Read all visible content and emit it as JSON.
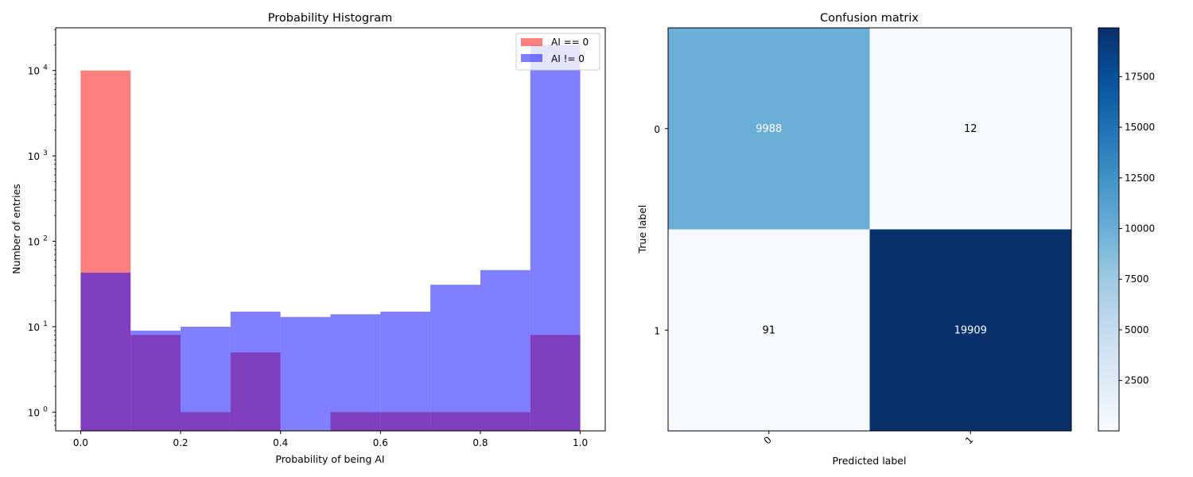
{
  "chart_data": [
    {
      "type": "bar",
      "subtype": "overlaid-histogram",
      "title": "Probability Histogram",
      "xlabel": "Probability of being AI",
      "ylabel": "Number of entries",
      "xlim": [
        -0.05,
        1.05
      ],
      "ylim_log10": [
        -0.22,
        4.5
      ],
      "yscale": "log",
      "bin_edges": [
        0.0,
        0.1,
        0.2,
        0.3,
        0.4,
        0.5,
        0.6,
        0.7,
        0.8,
        0.9,
        1.0
      ],
      "x_ticks": [
        {
          "value": 0.0,
          "label": "0.0"
        },
        {
          "value": 0.2,
          "label": "0.2"
        },
        {
          "value": 0.4,
          "label": "0.4"
        },
        {
          "value": 0.6,
          "label": "0.6"
        },
        {
          "value": 0.8,
          "label": "0.8"
        },
        {
          "value": 1.0,
          "label": "1.0"
        }
      ],
      "y_ticks": [
        {
          "exp": 0,
          "base": "10",
          "sup": "0"
        },
        {
          "exp": 1,
          "base": "10",
          "sup": "1"
        },
        {
          "exp": 2,
          "base": "10",
          "sup": "2"
        },
        {
          "exp": 3,
          "base": "10",
          "sup": "3"
        },
        {
          "exp": 4,
          "base": "10",
          "sup": "4"
        }
      ],
      "series": [
        {
          "name": "AI == 0",
          "color": "#ff0000",
          "alpha": 0.5,
          "values": [
            10000,
            8,
            1,
            5,
            0,
            1,
            1,
            1,
            1,
            8
          ]
        },
        {
          "name": "AI != 0",
          "color": "#0000ff",
          "alpha": 0.5,
          "values": [
            43,
            9,
            10,
            15,
            13,
            14,
            15,
            31,
            46,
            20000
          ]
        }
      ],
      "legend_position": "top-right"
    },
    {
      "type": "heatmap",
      "title": "Confusion matrix",
      "xlabel": "Predicted label",
      "ylabel": "True label",
      "x_categories": [
        "0",
        "1"
      ],
      "y_categories": [
        "0",
        "1"
      ],
      "matrix": [
        [
          9988,
          12
        ],
        [
          91,
          19909
        ]
      ],
      "cell_labels": [
        [
          "9988",
          "12"
        ],
        [
          "91",
          "19909"
        ]
      ],
      "colormap": "Blues",
      "colorbar": {
        "range": [
          12,
          19909
        ],
        "ticks": [
          {
            "value": 2500,
            "label": "2500"
          },
          {
            "value": 5000,
            "label": "5000"
          },
          {
            "value": 7500,
            "label": "7500"
          },
          {
            "value": 10000,
            "label": "10000"
          },
          {
            "value": 12500,
            "label": "12500"
          },
          {
            "value": 15000,
            "label": "15000"
          },
          {
            "value": 17500,
            "label": "17500"
          }
        ]
      }
    }
  ]
}
